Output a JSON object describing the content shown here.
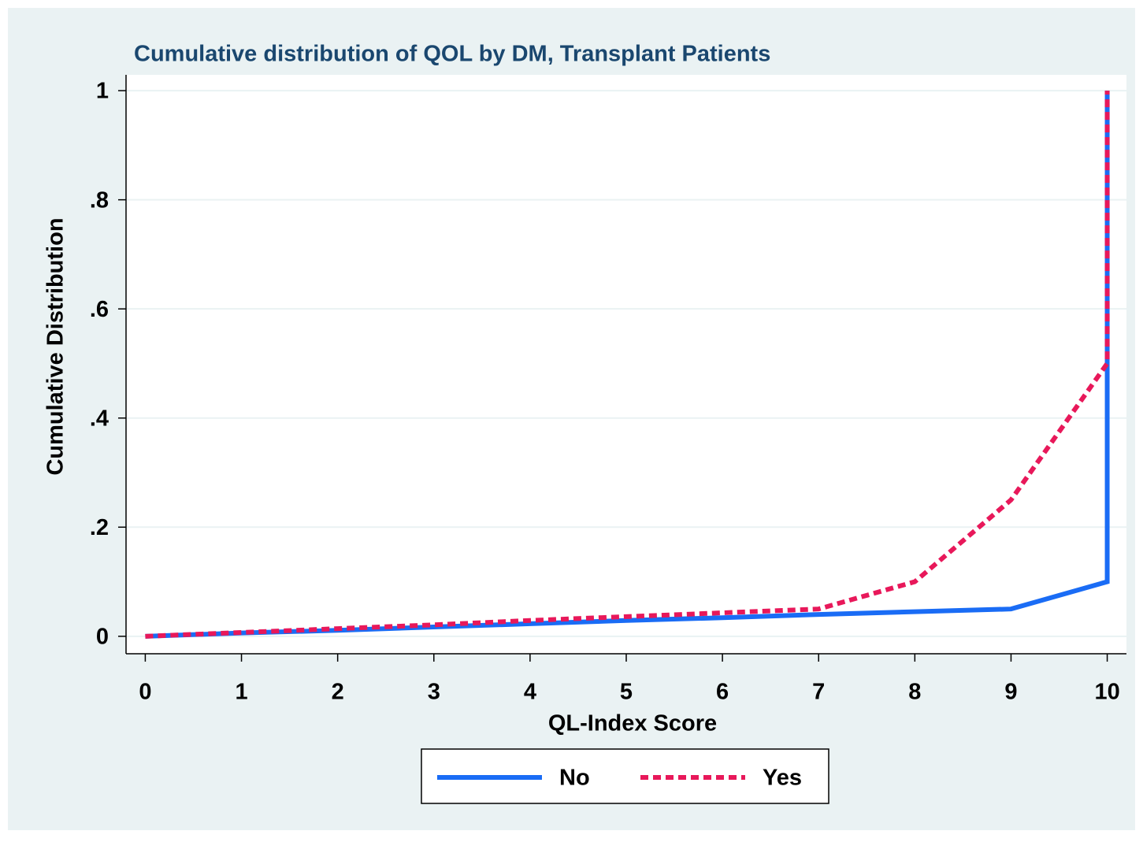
{
  "chart_data": {
    "type": "line",
    "title": "Cumulative distribution of QOL by DM, Transplant Patients",
    "x_label": "QL-Index Score",
    "y_label": "Cumulative Distribution",
    "series": [
      {
        "name": "No",
        "color": "#1a6cf5",
        "dash": false,
        "x": [
          0,
          1,
          2,
          3,
          4,
          5,
          6,
          7,
          8,
          9,
          10,
          10
        ],
        "values": [
          0,
          0.006,
          0.011,
          0.017,
          0.023,
          0.029,
          0.034,
          0.04,
          0.045,
          0.05,
          0.1,
          1
        ]
      },
      {
        "name": "Yes",
        "color": "#e8185a",
        "dash": true,
        "x": [
          0,
          1,
          2,
          3,
          4,
          5,
          6,
          7,
          8,
          9,
          10,
          10
        ],
        "values": [
          0,
          0.007,
          0.014,
          0.021,
          0.029,
          0.036,
          0.043,
          0.05,
          0.1,
          0.25,
          0.5,
          1
        ]
      }
    ],
    "xlim": [
      -0.2,
      10.2
    ],
    "ylim": [
      -0.032,
      1.029
    ],
    "xticks": [
      0,
      1,
      2,
      3,
      4,
      5,
      6,
      7,
      8,
      9,
      10
    ],
    "yticks": [
      0,
      {
        "value": 0.2,
        "label": ".2"
      },
      {
        "value": 0.4,
        "label": ".4"
      },
      {
        "value": 0.6,
        "label": ".6"
      },
      {
        "value": 0.8,
        "label": ".8"
      },
      1
    ],
    "grid": true,
    "legend": "bottom"
  }
}
